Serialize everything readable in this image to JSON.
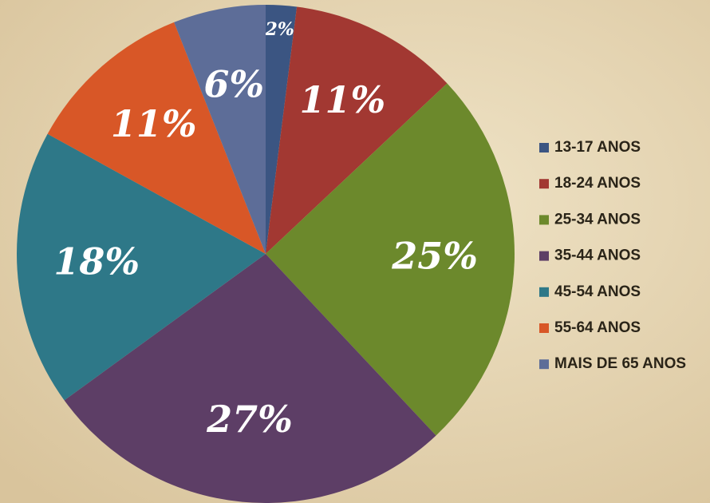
{
  "chart_data": {
    "type": "pie",
    "categories": [
      "13-17 ANOS",
      "18-24 ANOS",
      "25-34 ANOS",
      "35-44 ANOS",
      "45-54 ANOS",
      "55-64 ANOS",
      "MAIS DE 65 ANOS"
    ],
    "values": [
      2,
      11,
      25,
      27,
      18,
      11,
      6
    ],
    "value_labels": [
      "2%",
      "11%",
      "25%",
      "27%",
      "18%",
      "11%",
      "6%"
    ],
    "colors": [
      "#3b5582",
      "#a23832",
      "#6c892c",
      "#5d3e66",
      "#2e7888",
      "#d85727",
      "#5d6d98"
    ],
    "legend": "right"
  }
}
